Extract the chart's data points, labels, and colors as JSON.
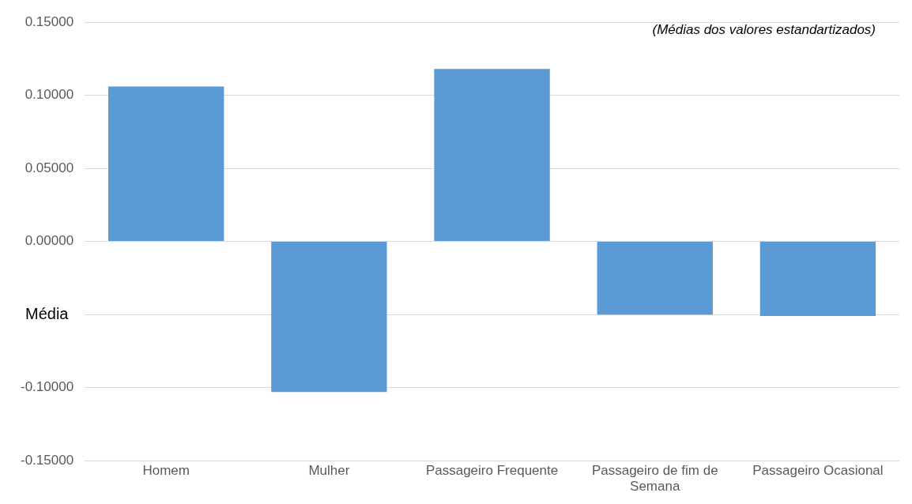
{
  "chart_data": {
    "type": "bar",
    "ylabel": "Média",
    "annotations": [
      "(Médias dos valores estandartizados)"
    ],
    "categories": [
      "Homem",
      "Mulher",
      "Passageiro Frequente",
      "Passageiro de fim de Semana",
      "Passageiro Ocasional"
    ],
    "values": [
      0.106,
      -0.103,
      0.118,
      -0.05,
      -0.051
    ],
    "color": "#5b9bd5",
    "ylim": [
      -0.15,
      0.15
    ],
    "yticks": [
      {
        "value": -0.15,
        "label": "-0.15000"
      },
      {
        "value": -0.1,
        "label": "-0.10000"
      },
      {
        "value": -0.05,
        "label": null
      },
      {
        "value": 0,
        "label": "0.00000"
      },
      {
        "value": 0.05,
        "label": "0.05000"
      },
      {
        "value": 0.1,
        "label": "0.10000"
      },
      {
        "value": 0.15,
        "label": "0.15000"
      }
    ],
    "grid": "y",
    "legend": false
  }
}
